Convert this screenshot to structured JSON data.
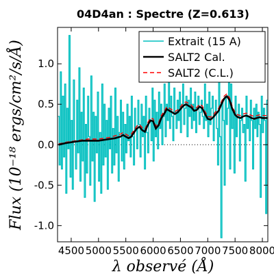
{
  "chart_data": {
    "type": "line",
    "title": "04D4an : Spectre (Z=0.613)",
    "xlabel": "λ observé (Å)",
    "ylabel": "Flux (10⁻¹⁸ ergs/cm²/s/Å)",
    "xlim": [
      4250,
      8100
    ],
    "ylim": [
      -1.2,
      1.45
    ],
    "xticks": [
      4500,
      5000,
      5500,
      6000,
      6500,
      7000,
      7500,
      8000
    ],
    "yticks": [
      -1.0,
      -0.5,
      0.0,
      0.5,
      1.0
    ],
    "ytick_labels": [
      "-1.0",
      "-0.5",
      "0.0",
      "0.5",
      "1.0"
    ],
    "grid": false,
    "legend_position": "top-right",
    "zero_line": true,
    "series": [
      {
        "name": "Extrait (15 A)",
        "color": "#00bfbf",
        "style": "step",
        "x": [
          4270,
          4290,
          4310,
          4330,
          4350,
          4370,
          4390,
          4410,
          4430,
          4450,
          4470,
          4490,
          4510,
          4530,
          4550,
          4570,
          4590,
          4610,
          4630,
          4650,
          4670,
          4690,
          4710,
          4730,
          4750,
          4770,
          4790,
          4810,
          4830,
          4850,
          4870,
          4890,
          4910,
          4930,
          4950,
          4970,
          4990,
          5010,
          5030,
          5050,
          5070,
          5090,
          5110,
          5130,
          5150,
          5170,
          5190,
          5210,
          5230,
          5250,
          5270,
          5290,
          5310,
          5330,
          5350,
          5370,
          5390,
          5410,
          5430,
          5450,
          5470,
          5490,
          5510,
          5530,
          5550,
          5570,
          5590,
          5610,
          5630,
          5650,
          5670,
          5690,
          5710,
          5730,
          5750,
          5770,
          5790,
          5810,
          5830,
          5850,
          5870,
          5890,
          5910,
          5930,
          5950,
          5970,
          5990,
          6010,
          6030,
          6050,
          6070,
          6090,
          6110,
          6130,
          6150,
          6170,
          6190,
          6210,
          6230,
          6250,
          6270,
          6290,
          6310,
          6330,
          6350,
          6370,
          6390,
          6410,
          6430,
          6450,
          6470,
          6490,
          6510,
          6530,
          6550,
          6570,
          6590,
          6610,
          6630,
          6650,
          6670,
          6690,
          6710,
          6730,
          6750,
          6770,
          6790,
          6810,
          6830,
          6850,
          6870,
          6890,
          6910,
          6930,
          6950,
          6970,
          6990,
          7010,
          7030,
          7050,
          7070,
          7090,
          7110,
          7130,
          7150,
          7170,
          7190,
          7210,
          7230,
          7250,
          7270,
          7290,
          7310,
          7330,
          7350,
          7370,
          7390,
          7410,
          7430,
          7450,
          7470,
          7490,
          7510,
          7530,
          7550,
          7570,
          7590,
          7610,
          7630,
          7650,
          7670,
          7690,
          7710,
          7730,
          7750,
          7770,
          7790,
          7810,
          7830,
          7850,
          7870,
          7890,
          7910,
          7930,
          7950,
          7970,
          7990,
          8010,
          8030,
          8050,
          8070,
          8090
        ],
        "y": [
          0.35,
          -0.25,
          0.9,
          -0.3,
          0.6,
          -0.15,
          0.75,
          -0.6,
          0.45,
          -0.05,
          1.35,
          -0.4,
          0.3,
          -0.55,
          0.8,
          0.05,
          -0.3,
          0.55,
          -0.1,
          0.95,
          -0.45,
          0.4,
          -0.2,
          0.7,
          -0.65,
          0.25,
          -0.35,
          0.6,
          0.1,
          -0.5,
          0.85,
          -0.2,
          0.4,
          -0.7,
          0.35,
          -0.1,
          0.65,
          -0.45,
          0.15,
          -0.6,
          0.75,
          -0.25,
          0.5,
          -0.15,
          0.3,
          -0.55,
          0.45,
          -0.05,
          0.6,
          -0.35,
          0.2,
          -0.25,
          0.7,
          -0.1,
          0.35,
          -0.45,
          0.15,
          0.55,
          -0.2,
          0.4,
          -0.3,
          0.25,
          -0.1,
          0.5,
          0.05,
          0.35,
          -0.15,
          0.6,
          0.1,
          -0.25,
          0.45,
          0.2,
          -0.05,
          0.55,
          0.25,
          -0.15,
          0.5,
          0.1,
          0.35,
          -0.3,
          0.6,
          0.15,
          -0.1,
          0.45,
          0.3,
          0.05,
          0.7,
          -0.2,
          0.55,
          0.1,
          0.4,
          -0.05,
          0.65,
          0.2,
          0.5,
          0.0,
          0.35,
          0.75,
          0.1,
          0.5,
          0.3,
          0.85,
          0.2,
          0.6,
          0.35,
          0.05,
          0.7,
          0.4,
          0.2,
          0.55,
          0.3,
          0.65,
          0.15,
          0.5,
          0.75,
          0.25,
          0.45,
          0.6,
          0.1,
          0.55,
          0.35,
          0.7,
          0.2,
          0.5,
          0.3,
          0.65,
          0.15,
          0.45,
          0.6,
          0.25,
          0.4,
          0.55,
          0.35,
          0.2,
          0.75,
          0.3,
          0.5,
          0.1,
          0.65,
          0.25,
          0.45,
          0.6,
          0.05,
          0.4,
          0.55,
          0.2,
          -0.25,
          0.85,
          0.1,
          -1.15,
          0.55,
          0.3,
          -0.5,
          0.6,
          0.25,
          0.45,
          1.0,
          -0.3,
          0.75,
          0.2,
          0.4,
          -0.35,
          0.6,
          0.1,
          0.35,
          0.5,
          -0.2,
          0.3,
          0.45,
          0.15,
          0.25,
          -0.45,
          0.6,
          0.2,
          0.35,
          0.05,
          0.55,
          0.3,
          -0.3,
          0.45,
          0.2,
          0.5,
          0.1,
          0.4,
          0.25,
          -0.65,
          0.6,
          0.15,
          0.45,
          0.3,
          -0.85,
          0.55
        ]
      },
      {
        "name": "SALT2 Cal.",
        "color": "#000000",
        "style": "line",
        "x": [
          4270,
          4400,
          4500,
          4600,
          4700,
          4800,
          4900,
          5000,
          5100,
          5200,
          5300,
          5400,
          5450,
          5500,
          5550,
          5600,
          5650,
          5700,
          5750,
          5800,
          5850,
          5900,
          5950,
          6000,
          6050,
          6100,
          6150,
          6200,
          6250,
          6300,
          6350,
          6400,
          6450,
          6500,
          6550,
          6600,
          6650,
          6700,
          6750,
          6800,
          6850,
          6900,
          6950,
          7000,
          7050,
          7100,
          7150,
          7200,
          7250,
          7300,
          7350,
          7400,
          7450,
          7500,
          7550,
          7600,
          7650,
          7700,
          7750,
          7800,
          7850,
          7900,
          7950,
          8000,
          8050,
          8090
        ],
        "y": [
          0.0,
          0.02,
          0.03,
          0.04,
          0.05,
          0.05,
          0.05,
          0.05,
          0.06,
          0.07,
          0.08,
          0.1,
          0.12,
          0.1,
          0.08,
          0.1,
          0.15,
          0.2,
          0.22,
          0.18,
          0.16,
          0.24,
          0.3,
          0.29,
          0.2,
          0.24,
          0.33,
          0.38,
          0.44,
          0.42,
          0.4,
          0.38,
          0.4,
          0.44,
          0.48,
          0.5,
          0.48,
          0.46,
          0.42,
          0.43,
          0.47,
          0.45,
          0.38,
          0.32,
          0.31,
          0.34,
          0.38,
          0.42,
          0.5,
          0.57,
          0.6,
          0.55,
          0.44,
          0.37,
          0.34,
          0.33,
          0.35,
          0.36,
          0.35,
          0.33,
          0.32,
          0.33,
          0.34,
          0.33,
          0.33,
          0.33
        ]
      },
      {
        "name": "SALT2 (C.L.)",
        "color": "#ff0000",
        "style": "dashed",
        "x": [
          4270,
          4400,
          4500,
          4600,
          4700,
          4800,
          4900,
          5000,
          5100,
          5200,
          5300,
          5400,
          5450,
          5500,
          5550,
          5600,
          5650,
          5700,
          5750,
          5800,
          5850,
          5900,
          5950,
          6000,
          6050,
          6100,
          6150,
          6200,
          6250,
          6300,
          6350,
          6400,
          6450,
          6500,
          6550,
          6600,
          6650,
          6700,
          6750,
          6800,
          6850,
          6900,
          6950,
          7000,
          7050,
          7100,
          7150,
          7200,
          7250,
          7300,
          7350,
          7400,
          7450,
          7500,
          7550,
          7600,
          7650,
          7700,
          7750,
          7800,
          7850,
          7900,
          7950,
          8000,
          8050,
          8090
        ],
        "y": [
          0.01,
          0.03,
          0.04,
          0.05,
          0.06,
          0.07,
          0.07,
          0.07,
          0.08,
          0.09,
          0.11,
          0.13,
          0.15,
          0.13,
          0.11,
          0.13,
          0.18,
          0.23,
          0.25,
          0.21,
          0.19,
          0.27,
          0.33,
          0.32,
          0.23,
          0.27,
          0.36,
          0.41,
          0.47,
          0.45,
          0.43,
          0.41,
          0.43,
          0.47,
          0.51,
          0.53,
          0.51,
          0.49,
          0.45,
          0.46,
          0.5,
          0.48,
          0.41,
          0.35,
          0.34,
          0.37,
          0.41,
          0.45,
          0.53,
          0.6,
          0.63,
          0.58,
          0.47,
          0.4,
          0.37,
          0.36,
          0.38,
          0.39,
          0.38,
          0.36,
          0.35,
          0.36,
          0.37,
          0.36,
          0.36,
          0.36
        ]
      }
    ]
  }
}
